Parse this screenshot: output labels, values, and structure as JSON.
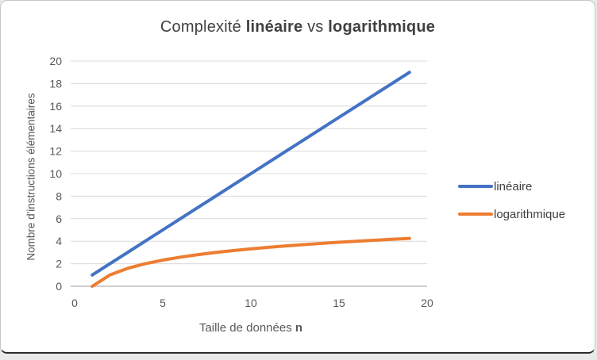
{
  "title": {
    "normal1": "Complexité ",
    "bold1": "linéaire",
    "normal2": " vs ",
    "bold2": "logarithmique"
  },
  "x_axis_title": {
    "normal": "Taille de données ",
    "bold": "n"
  },
  "chart_data": {
    "type": "line",
    "title": "Complexité linéaire vs logarithmique",
    "xlabel": "Taille de données n",
    "ylabel": "Nombre d'instructions élémentaires",
    "x": [
      1,
      2,
      3,
      4,
      5,
      6,
      7,
      8,
      9,
      10,
      11,
      12,
      13,
      14,
      15,
      16,
      17,
      18,
      19
    ],
    "series": [
      {
        "name": "linéaire",
        "color": "#4472C4",
        "values": [
          1,
          2,
          3,
          4,
          5,
          6,
          7,
          8,
          9,
          10,
          11,
          12,
          13,
          14,
          15,
          16,
          17,
          18,
          19
        ]
      },
      {
        "name": "logarithmique",
        "color": "#ED7D31",
        "values": [
          0,
          1,
          1.585,
          2,
          2.322,
          2.585,
          2.807,
          3,
          3.17,
          3.322,
          3.459,
          3.585,
          3.7,
          3.807,
          3.907,
          4,
          4.087,
          4.17,
          4.248
        ]
      }
    ],
    "xlim": [
      0,
      20
    ],
    "ylim": [
      0,
      20
    ],
    "xticks": [
      0,
      5,
      10,
      15,
      20
    ],
    "yticks": [
      0,
      2,
      4,
      6,
      8,
      10,
      12,
      14,
      16,
      18,
      20
    ],
    "grid": "horizontal-only",
    "legend_position": "right",
    "colors": {
      "gridline": "#D9D9D9",
      "axis_line": "#BFBFBF",
      "tick_label": "#595959"
    }
  }
}
